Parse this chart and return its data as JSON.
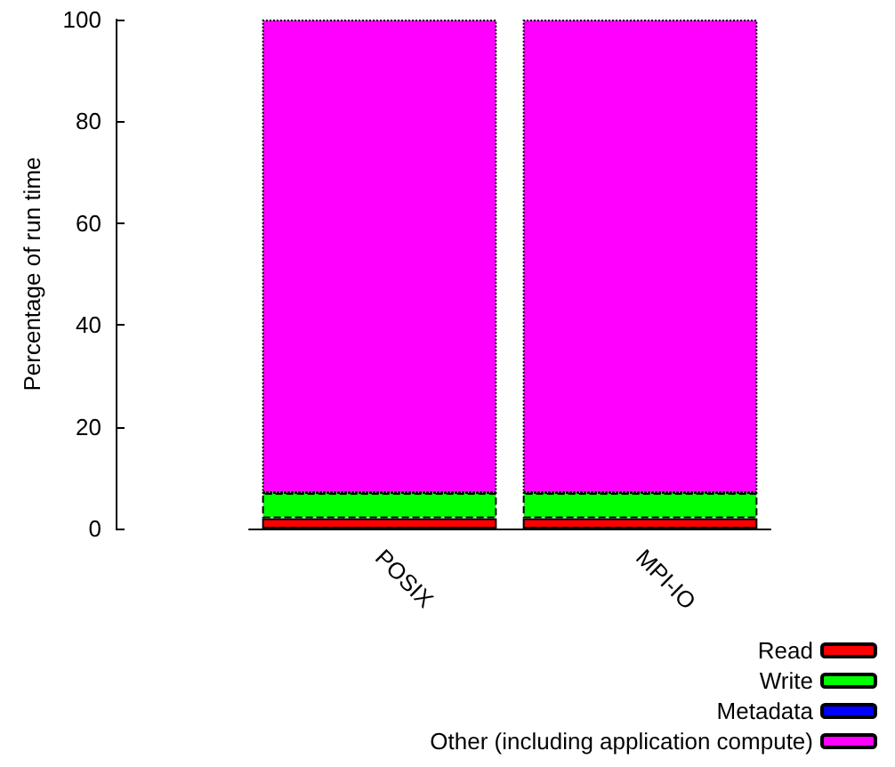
{
  "chart_data": {
    "type": "bar",
    "stacked": true,
    "ylabel": "Percentage of run time",
    "categories": [
      "POSIX",
      "MPI-IO"
    ],
    "series": [
      {
        "name": "Read",
        "color": "#ff0000",
        "values": [
          2,
          2
        ]
      },
      {
        "name": "Write",
        "color": "#00ff00",
        "values": [
          5,
          5
        ]
      },
      {
        "name": "Metadata",
        "color": "#0000ff",
        "values": [
          0,
          0
        ]
      },
      {
        "name": "Other (including application compute)",
        "color": "#ff00ff",
        "values": [
          93,
          93
        ]
      }
    ],
    "ylim": [
      0,
      100
    ],
    "yticks": [
      0,
      20,
      40,
      60,
      80,
      100
    ],
    "grid": false,
    "legend": "bottom right"
  }
}
